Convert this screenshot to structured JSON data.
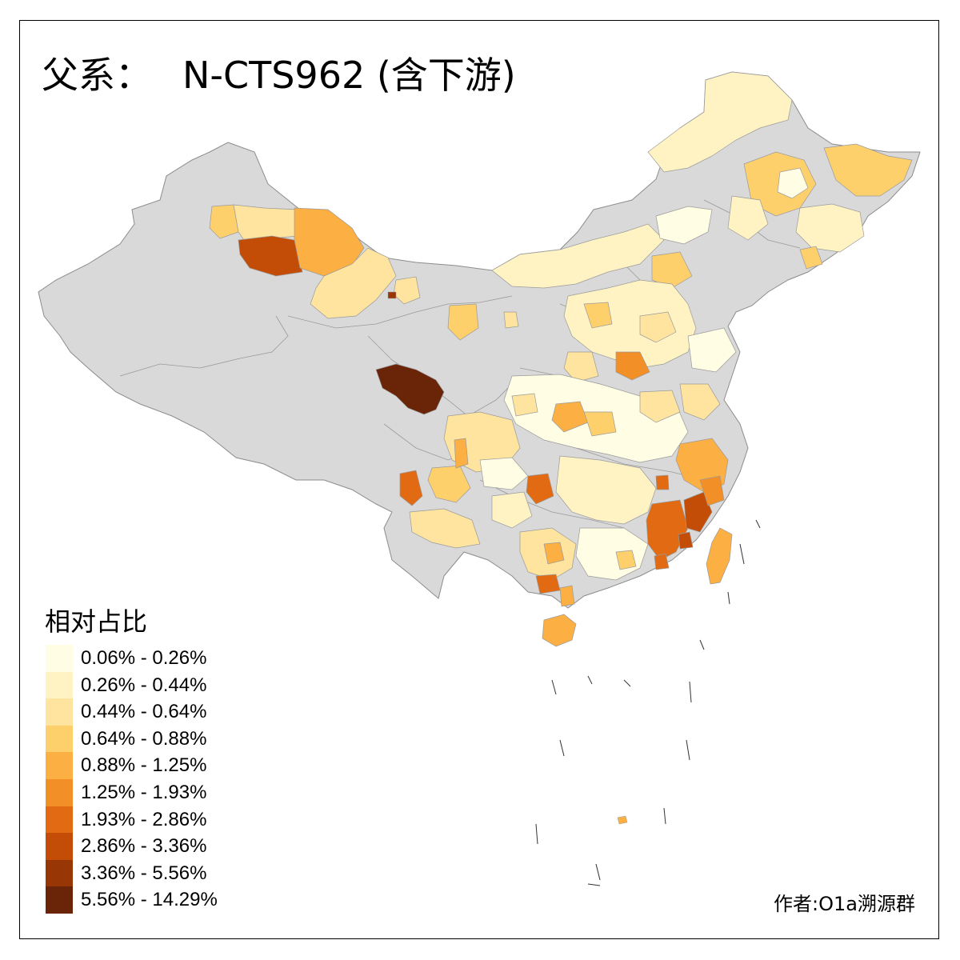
{
  "title": {
    "prefix": "父系：",
    "main": "N-CTS962 (含下游)"
  },
  "legend": {
    "title": "相对占比",
    "classes": [
      {
        "label": "0.06% - 0.26%",
        "color": "#fffde3"
      },
      {
        "label": "0.26% - 0.44%",
        "color": "#fff3c4"
      },
      {
        "label": "0.44% - 0.64%",
        "color": "#fee49e"
      },
      {
        "label": "0.64% - 0.88%",
        "color": "#fed06c"
      },
      {
        "label": "0.88% - 1.25%",
        "color": "#fcaf42"
      },
      {
        "label": "1.25% - 1.93%",
        "color": "#f38f27"
      },
      {
        "label": "1.93% - 2.86%",
        "color": "#e16a13"
      },
      {
        "label": "2.86% - 3.36%",
        "color": "#c34d06"
      },
      {
        "label": "3.36% - 5.56%",
        "color": "#993606"
      },
      {
        "label": "5.56% - 14.29%",
        "color": "#6a2407"
      }
    ]
  },
  "credit": "作者:O1a溯源群",
  "colors": {
    "no_data": "#d9d9d9",
    "boundary": "#8c8c8c"
  }
}
